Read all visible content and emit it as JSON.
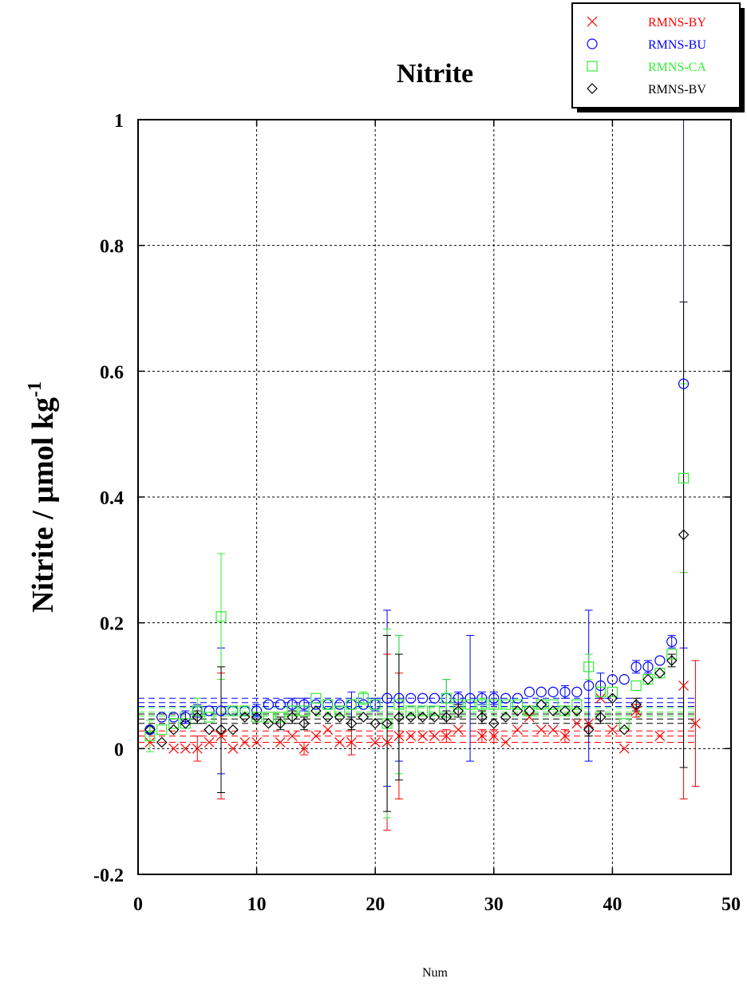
{
  "chart_data": {
    "type": "scatter",
    "title": "Nitrite",
    "xlabel": "Num",
    "ylabel": "Nitrite / µmol kg",
    "ylabel_sup": "-1",
    "xlim": [
      0,
      50
    ],
    "ylim": [
      -0.2,
      1.0
    ],
    "xticks": [
      0,
      10,
      20,
      30,
      40,
      50
    ],
    "xtick_labels": [
      "0",
      "10",
      "20",
      "30",
      "40",
      "50"
    ],
    "yticks": [
      -0.2,
      0,
      0.2,
      0.4,
      0.6,
      0.8,
      1.0
    ],
    "ytick_labels": [
      "-0.2",
      "0",
      "0.2",
      "0.4",
      "0.6",
      "0.8",
      "1"
    ],
    "grid": true,
    "legend_position": "top-right",
    "series": [
      {
        "name": "RMNS-BY",
        "color": "#ff0000",
        "marker": "cross",
        "mean_lines": [
          0.01,
          0.02,
          0.028
        ],
        "x": [
          1,
          3,
          4,
          5,
          6,
          7,
          8,
          9,
          10,
          12,
          13,
          14,
          15,
          16,
          17,
          18,
          20,
          21,
          22,
          23,
          24,
          25,
          26,
          27,
          29,
          30,
          31,
          32,
          33,
          34,
          35,
          36,
          37,
          38,
          39,
          40,
          41,
          42,
          44,
          46,
          47
        ],
        "y": [
          0.01,
          0.0,
          0.0,
          0.0,
          0.01,
          0.02,
          0.0,
          0.01,
          0.01,
          0.01,
          0.02,
          0.0,
          0.02,
          0.03,
          0.01,
          0.01,
          0.01,
          0.01,
          0.02,
          0.02,
          0.02,
          0.02,
          0.02,
          0.03,
          0.02,
          0.02,
          0.01,
          0.03,
          0.05,
          0.03,
          0.03,
          0.02,
          0.04,
          0.04,
          0.08,
          0.03,
          0.0,
          0.06,
          0.02,
          0.1,
          0.04
        ],
        "err": [
          0,
          0,
          0,
          0.02,
          0,
          0.1,
          0,
          0,
          0,
          0,
          0,
          0.01,
          0,
          0,
          0,
          0.02,
          0,
          0.14,
          0.1,
          0,
          0,
          0,
          0.01,
          0,
          0.01,
          0.01,
          0,
          0,
          0,
          0,
          0,
          0.01,
          0,
          0,
          0,
          0,
          0,
          0.01,
          0,
          0.18,
          0.1
        ]
      },
      {
        "name": "RMNS-BU",
        "color": "#0000ff",
        "marker": "circle",
        "mean_lines": [
          0.067,
          0.073,
          0.08
        ],
        "x": [
          1,
          2,
          3,
          4,
          5,
          6,
          7,
          8,
          9,
          10,
          11,
          12,
          13,
          14,
          15,
          16,
          17,
          18,
          19,
          20,
          21,
          22,
          23,
          24,
          25,
          26,
          27,
          28,
          29,
          30,
          31,
          32,
          33,
          34,
          35,
          36,
          37,
          38,
          39,
          40,
          41,
          42,
          43,
          44,
          45,
          46
        ],
        "y": [
          0.03,
          0.05,
          0.05,
          0.05,
          0.06,
          0.06,
          0.06,
          0.06,
          0.06,
          0.06,
          0.07,
          0.07,
          0.07,
          0.07,
          0.07,
          0.07,
          0.07,
          0.07,
          0.07,
          0.07,
          0.08,
          0.08,
          0.08,
          0.08,
          0.08,
          0.08,
          0.08,
          0.08,
          0.08,
          0.08,
          0.08,
          0.08,
          0.09,
          0.09,
          0.09,
          0.09,
          0.09,
          0.1,
          0.1,
          0.11,
          0.11,
          0.13,
          0.13,
          0.14,
          0.17,
          0.58
        ],
        "err": [
          0.005,
          0,
          0,
          0.01,
          0.01,
          0,
          0.1,
          0,
          0,
          0.01,
          0,
          0,
          0.01,
          0.01,
          0,
          0,
          0,
          0.02,
          0,
          0.01,
          0.14,
          0.1,
          0,
          0,
          0,
          0.03,
          0.01,
          0.1,
          0.01,
          0.01,
          0,
          0,
          0,
          0,
          0,
          0.01,
          0,
          0.12,
          0.02,
          0,
          0,
          0.01,
          0.01,
          0,
          0.01,
          0.42
        ]
      },
      {
        "name": "RMNS-CA",
        "color": "#33ee33",
        "marker": "square",
        "mean_lines": [
          0.052,
          0.058,
          0.065
        ],
        "x": [
          1,
          2,
          3,
          4,
          5,
          6,
          7,
          8,
          9,
          10,
          11,
          12,
          13,
          14,
          15,
          16,
          17,
          18,
          19,
          20,
          21,
          22,
          23,
          24,
          25,
          26,
          27,
          28,
          29,
          30,
          31,
          32,
          33,
          34,
          35,
          36,
          37,
          38,
          39,
          40,
          41,
          42,
          43,
          44,
          45,
          46
        ],
        "y": [
          0.02,
          0.03,
          0.04,
          0.04,
          0.06,
          0.05,
          0.21,
          0.06,
          0.06,
          0.05,
          0.05,
          0.05,
          0.06,
          0.06,
          0.08,
          0.07,
          0.06,
          0.07,
          0.08,
          0.07,
          0.04,
          0.07,
          0.06,
          0.06,
          0.06,
          0.08,
          0.07,
          0.07,
          0.07,
          0.07,
          0.07,
          0.07,
          0.06,
          0.07,
          0.07,
          0.06,
          0.07,
          0.13,
          0.09,
          0.09,
          0.04,
          0.1,
          0.11,
          0.12,
          0.15,
          0.43
        ],
        "err": [
          0.025,
          0,
          0,
          0,
          0.02,
          0,
          0.1,
          0,
          0,
          0,
          0,
          0,
          0,
          0,
          0,
          0,
          0,
          0,
          0.01,
          0,
          0.15,
          0.11,
          0,
          0,
          0,
          0.03,
          0,
          0,
          0.01,
          0,
          0,
          0,
          0,
          0,
          0,
          0,
          0,
          0.02,
          0,
          0,
          0,
          0,
          0,
          0,
          0,
          0.15
        ]
      },
      {
        "name": "RMNS-BV",
        "color": "#000000",
        "marker": "diamond",
        "mean_lines": [
          0.04,
          0.047,
          0.055
        ],
        "x": [
          1,
          2,
          3,
          4,
          5,
          6,
          7,
          8,
          9,
          10,
          11,
          12,
          13,
          14,
          15,
          16,
          17,
          18,
          19,
          20,
          21,
          22,
          23,
          24,
          25,
          26,
          27,
          29,
          30,
          31,
          32,
          33,
          34,
          35,
          36,
          37,
          38,
          39,
          40,
          41,
          42,
          43,
          44,
          45,
          46
        ],
        "y": [
          0.03,
          0.01,
          0.03,
          0.04,
          0.05,
          0.03,
          0.03,
          0.03,
          0.05,
          0.05,
          0.04,
          0.04,
          0.05,
          0.04,
          0.06,
          0.05,
          0.05,
          0.04,
          0.05,
          0.04,
          0.04,
          0.05,
          0.05,
          0.05,
          0.05,
          0.05,
          0.06,
          0.05,
          0.04,
          0.05,
          0.06,
          0.06,
          0.07,
          0.06,
          0.06,
          0.06,
          0.03,
          0.05,
          0.08,
          0.03,
          0.07,
          0.11,
          0.12,
          0.14,
          0.34
        ],
        "err": [
          0,
          0,
          0,
          0,
          0.01,
          0,
          0.1,
          0,
          0,
          0,
          0,
          0.01,
          0.01,
          0.01,
          0,
          0,
          0,
          0.01,
          0,
          0,
          0.14,
          0.1,
          0,
          0,
          0,
          0.01,
          0.01,
          0.01,
          0,
          0,
          0,
          0,
          0,
          0,
          0,
          0,
          0.01,
          0.01,
          0,
          0,
          0.01,
          0,
          0,
          0.01,
          0.37
        ]
      }
    ]
  }
}
